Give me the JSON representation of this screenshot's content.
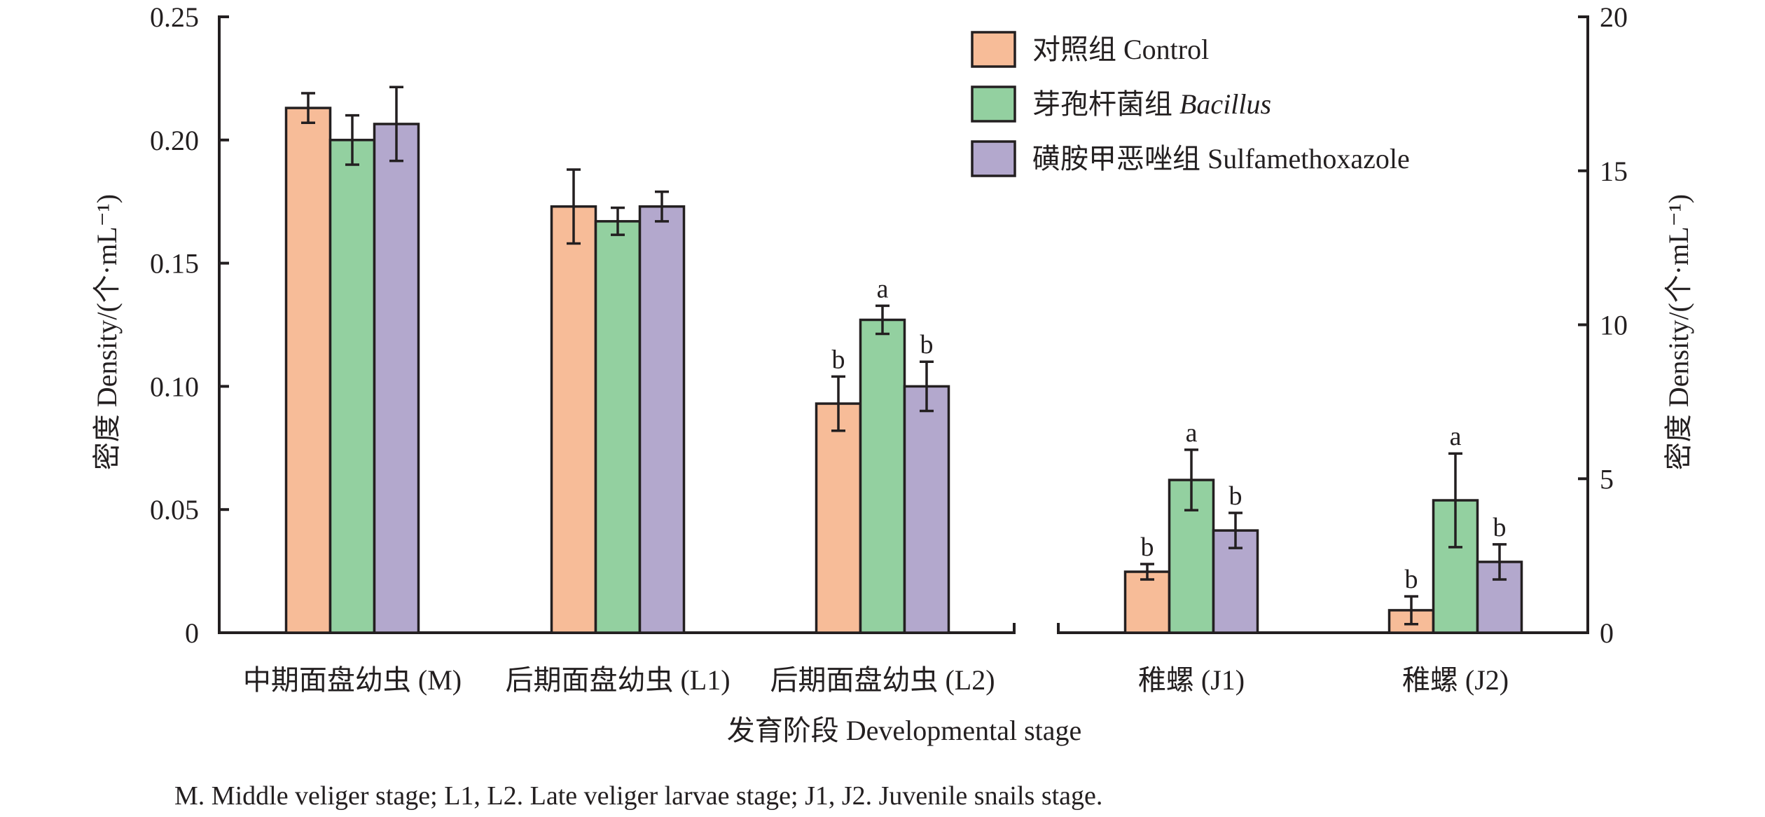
{
  "chart_data": {
    "type": "bar",
    "title": "",
    "xlabel": "发育阶段 Developmental stage",
    "ylabel_left": "密度 Density/(个·mL⁻¹)",
    "ylabel_right": "密度 Density/(个·mL⁻¹)",
    "grid": false,
    "legend_position": "top-right",
    "categories": [
      "中期面盘幼虫 (M)",
      "后期面盘幼虫 (L1)",
      "后期面盘幼虫 (L2)",
      "稚螺 (J1)",
      "稚螺 (J2)"
    ],
    "axis_assignment": [
      "left",
      "left",
      "left",
      "right",
      "right"
    ],
    "left_axis": {
      "ylim": [
        0,
        0.25
      ],
      "ticks": [
        "0",
        "0.05",
        "0.10",
        "0.15",
        "0.20",
        "0.25"
      ],
      "tick_values": [
        0,
        0.05,
        0.1,
        0.15,
        0.2,
        0.25
      ]
    },
    "right_axis": {
      "ylim": [
        0,
        20
      ],
      "ticks": [
        "0",
        "5",
        "10",
        "15",
        "20"
      ],
      "tick_values": [
        0,
        5,
        10,
        15,
        20
      ]
    },
    "series": [
      {
        "name": "对照组 Control",
        "name_cn": "对照组",
        "name_en": "Control",
        "italic_en": false,
        "color": "#f7bc98",
        "values": [
          0.213,
          0.173,
          0.093,
          1.98,
          0.73
        ],
        "errors": [
          0.006,
          0.015,
          0.011,
          0.25,
          0.45
        ],
        "significance": [
          "",
          "",
          "b",
          "b",
          "b"
        ]
      },
      {
        "name": "芽孢杆菌组 Bacillus",
        "name_cn": "芽孢杆菌组",
        "name_en": "Bacillus",
        "italic_en": true,
        "color": "#93d0a0",
        "values": [
          0.2,
          0.167,
          0.127,
          4.96,
          4.3
        ],
        "errors": [
          0.01,
          0.0055,
          0.0057,
          0.98,
          1.52
        ],
        "significance": [
          "",
          "",
          "a",
          "a",
          "a"
        ]
      },
      {
        "name": "磺胺甲恶唑组 Sulfamethoxazole",
        "name_cn": "磺胺甲恶唑组",
        "name_en": "Sulfamethoxazole",
        "italic_en": false,
        "color": "#b3a8cd",
        "values": [
          0.2065,
          0.173,
          0.1,
          3.32,
          2.3
        ],
        "errors": [
          0.015,
          0.006,
          0.01,
          0.57,
          0.57
        ],
        "significance": [
          "",
          "",
          "b",
          "b",
          "b"
        ]
      }
    ],
    "caption": "M. Middle veliger stage; L1, L2. Late veliger larvae stage;  J1, J2. Juvenile snails stage."
  }
}
